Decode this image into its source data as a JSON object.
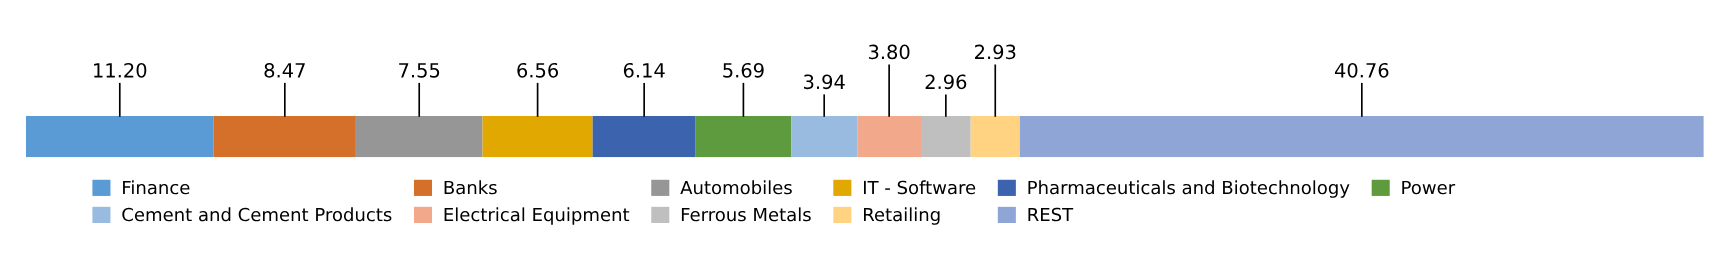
{
  "chart_data": {
    "type": "bar",
    "orientation": "horizontal",
    "stacked": true,
    "legend": "bottom",
    "tick_labels": false,
    "categories": [
      null
    ],
    "series": [
      {
        "name": "Finance",
        "color": "#5b9bd5",
        "values": [
          11.2
        ],
        "value_labels": [
          "11.20"
        ]
      },
      {
        "name": "Banks",
        "color": "#d4702a",
        "values": [
          8.47
        ],
        "value_labels": [
          "8.47"
        ]
      },
      {
        "name": "Automobiles",
        "color": "#969696",
        "values": [
          7.55
        ],
        "value_labels": [
          "7.55"
        ]
      },
      {
        "name": "IT - Software",
        "color": "#e0a800",
        "values": [
          6.56
        ],
        "value_labels": [
          "6.56"
        ]
      },
      {
        "name": "Pharmaceuticals and Biotechnology",
        "color": "#3c63ae",
        "values": [
          6.14
        ],
        "value_labels": [
          "6.14"
        ]
      },
      {
        "name": "Power",
        "color": "#5e9a3e",
        "values": [
          5.69
        ],
        "value_labels": [
          "5.69"
        ]
      },
      {
        "name": "Cement and Cement Products",
        "color": "#99bbe0",
        "values": [
          3.94
        ],
        "value_labels": [
          "3.94"
        ]
      },
      {
        "name": "Electrical Equipment",
        "color": "#f2a88a",
        "values": [
          3.8
        ],
        "value_labels": [
          "3.80"
        ]
      },
      {
        "name": "Ferrous Metals",
        "color": "#bfbfbf",
        "values": [
          2.96
        ],
        "value_labels": [
          "2.96"
        ]
      },
      {
        "name": "Retailing",
        "color": "#ffd382",
        "values": [
          2.93
        ],
        "value_labels": [
          "2.93"
        ]
      },
      {
        "name": "REST",
        "color": "#8fa5d5",
        "values": [
          40.76
        ],
        "value_labels": [
          "40.76"
        ]
      }
    ]
  }
}
